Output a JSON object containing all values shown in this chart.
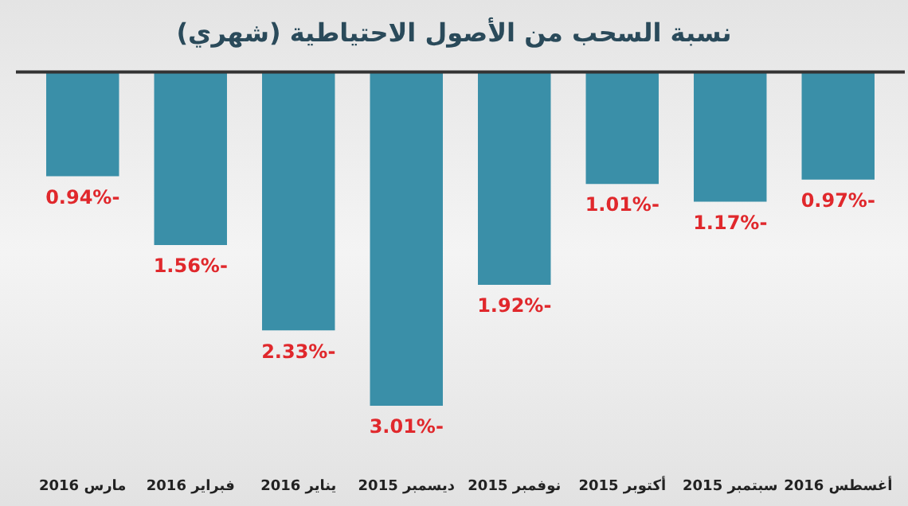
{
  "chart_data": {
    "type": "bar",
    "title": "نسبة السحب من الأصول الاحتياطية (شهري)",
    "categories": [
      "مارس 2016",
      "فبراير 2016",
      "يناير 2016",
      "ديسمبر 2015",
      "نوفمبر 2015",
      "أكتوبر 2015",
      "سبتمبر 2015",
      "أغسطس 2016"
    ],
    "values": [
      -0.94,
      -1.56,
      -2.33,
      -3.01,
      -1.92,
      -1.01,
      -1.17,
      -0.97
    ],
    "value_labels": [
      "-0.94%",
      "-1.56%",
      "-2.33%",
      "-3.01%",
      "-1.92%",
      "-1.01%",
      "-1.17%",
      "-0.97%"
    ],
    "color": "#3a8fa8",
    "tick_labels": "x"
  }
}
